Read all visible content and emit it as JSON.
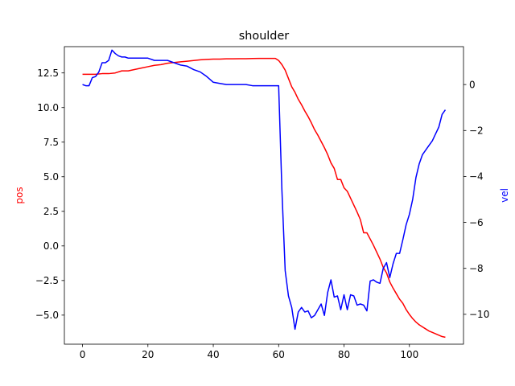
{
  "chart_data": {
    "type": "line",
    "title": "shoulder",
    "xlabel": "",
    "ylabel_left": "pos",
    "ylabel_right": "vel",
    "xlim": [
      -5.55,
      116.55
    ],
    "ylim_left": [
      -7.1,
      14.4
    ],
    "ylim_right": [
      -11.3,
      1.65
    ],
    "xticks": [
      0,
      20,
      40,
      60,
      80,
      100
    ],
    "yticks_left": [
      -5.0,
      -2.5,
      0.0,
      2.5,
      5.0,
      7.5,
      10.0,
      12.5
    ],
    "yticks_left_labels": [
      "−5.0",
      "−2.5",
      "0.0",
      "2.5",
      "5.0",
      "7.5",
      "10.0",
      "12.5"
    ],
    "yticks_right": [
      0,
      -2,
      -4,
      -6,
      -8,
      -10
    ],
    "yticks_right_labels": [
      "0",
      "−2",
      "−4",
      "−6",
      "−8",
      "−10"
    ],
    "grid": false,
    "series": [
      {
        "name": "pos",
        "axis": "left",
        "color": "#ff0000",
        "x": [
          0,
          2,
          4,
          6,
          8,
          10,
          12,
          14,
          16,
          18,
          20,
          22,
          24,
          26,
          28,
          30,
          32,
          34,
          36,
          38,
          40,
          42,
          44,
          46,
          48,
          50,
          52,
          54,
          56,
          58,
          59,
          60,
          61,
          62,
          63,
          64,
          65,
          66,
          67,
          68,
          69,
          70,
          71,
          72,
          73,
          74,
          75,
          76,
          77,
          78,
          79,
          80,
          81,
          82,
          83,
          84,
          85,
          86,
          87,
          88,
          89,
          90,
          91,
          92,
          93,
          94,
          95,
          96,
          97,
          98,
          99,
          100,
          101,
          102,
          103,
          104,
          105,
          106,
          107,
          108,
          109,
          110,
          111
        ],
        "y": [
          12.4,
          12.4,
          12.4,
          12.45,
          12.45,
          12.5,
          12.65,
          12.65,
          12.75,
          12.85,
          12.95,
          13.05,
          13.1,
          13.2,
          13.25,
          13.3,
          13.35,
          13.4,
          13.45,
          13.48,
          13.5,
          13.5,
          13.52,
          13.52,
          13.53,
          13.53,
          13.54,
          13.55,
          13.55,
          13.55,
          13.55,
          13.4,
          13.1,
          12.7,
          12.1,
          11.5,
          11.1,
          10.6,
          10.2,
          9.75,
          9.35,
          8.9,
          8.4,
          8.0,
          7.55,
          7.1,
          6.6,
          6.0,
          5.6,
          4.8,
          4.8,
          4.2,
          3.95,
          3.45,
          2.95,
          2.45,
          1.9,
          0.95,
          0.95,
          0.5,
          0.05,
          -0.45,
          -0.95,
          -1.55,
          -1.95,
          -2.6,
          -3.05,
          -3.45,
          -3.85,
          -4.15,
          -4.6,
          -4.95,
          -5.25,
          -5.5,
          -5.7,
          -5.85,
          -6.0,
          -6.15,
          -6.25,
          -6.35,
          -6.45,
          -6.55,
          -6.6
        ]
      },
      {
        "name": "vel",
        "axis": "right",
        "color": "#0000ff",
        "x": [
          0,
          1,
          2,
          3,
          4,
          5,
          6,
          7,
          8,
          9,
          10,
          11,
          12,
          13,
          14,
          16,
          18,
          20,
          22,
          24,
          26,
          28,
          30,
          32,
          34,
          36,
          38,
          40,
          42,
          44,
          46,
          48,
          50,
          52,
          54,
          56,
          57,
          58,
          59,
          60,
          61,
          62,
          63,
          64,
          65,
          66,
          67,
          68,
          69,
          70,
          71,
          72,
          73,
          74,
          75,
          76,
          77,
          78,
          79,
          80,
          81,
          82,
          83,
          84,
          85,
          86,
          87,
          88,
          89,
          90,
          91,
          92,
          93,
          94,
          95,
          96,
          97,
          98,
          99,
          100,
          101,
          102,
          103,
          104,
          105,
          106,
          107,
          108,
          109,
          110,
          111
        ],
        "y": [
          0.0,
          -0.05,
          -0.05,
          0.3,
          0.35,
          0.55,
          0.95,
          0.95,
          1.05,
          1.5,
          1.35,
          1.25,
          1.2,
          1.2,
          1.15,
          1.15,
          1.15,
          1.15,
          1.05,
          1.05,
          1.05,
          0.95,
          0.85,
          0.8,
          0.65,
          0.55,
          0.35,
          0.1,
          0.05,
          0.0,
          0.0,
          0.0,
          0.0,
          -0.05,
          -0.05,
          -0.05,
          -0.05,
          -0.05,
          -0.05,
          -0.05,
          -4.6,
          -8.1,
          -9.2,
          -9.7,
          -10.65,
          -9.9,
          -9.7,
          -9.9,
          -9.85,
          -10.15,
          -10.05,
          -9.8,
          -9.55,
          -10.05,
          -9.05,
          -8.5,
          -9.25,
          -9.2,
          -9.8,
          -9.15,
          -9.8,
          -9.15,
          -9.2,
          -9.6,
          -9.55,
          -9.6,
          -9.85,
          -8.55,
          -8.5,
          -8.6,
          -8.65,
          -8.0,
          -7.75,
          -8.4,
          -7.8,
          -7.35,
          -7.35,
          -6.75,
          -6.1,
          -5.65,
          -5.0,
          -4.05,
          -3.45,
          -3.05,
          -2.85,
          -2.65,
          -2.45,
          -2.15,
          -1.85,
          -1.3,
          -1.1
        ]
      }
    ]
  }
}
